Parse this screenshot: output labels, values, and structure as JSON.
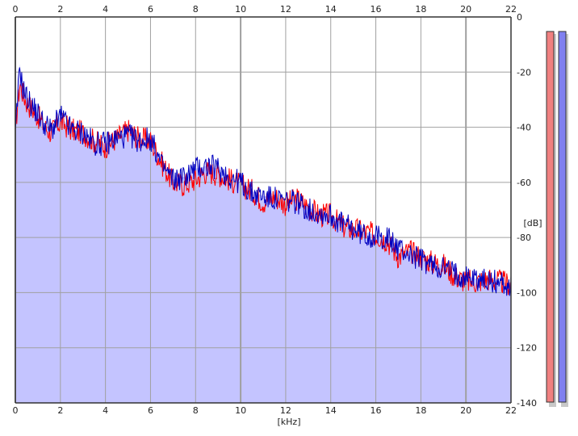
{
  "chart_data": {
    "type": "area",
    "xlabel": "[kHz]",
    "ylabel": "[dB]",
    "xlim": [
      0,
      22
    ],
    "ylim": [
      -140,
      0
    ],
    "x_ticks": [
      0,
      2,
      4,
      6,
      8,
      10,
      12,
      14,
      16,
      18,
      20,
      22
    ],
    "x_tick_labels": [
      "0",
      "2",
      "4",
      "6",
      "8",
      "10",
      "12",
      "14",
      "16",
      "18",
      "20",
      "22"
    ],
    "y_ticks": [
      0,
      -20,
      -40,
      -60,
      -80,
      -100,
      -120,
      -140
    ],
    "y_tick_labels": [
      "0",
      "-20",
      "-40",
      "-60",
      "-80",
      "-100",
      "-120",
      "-140"
    ],
    "grid": true,
    "x_axis_labels_on_top_and_bottom": true,
    "series": [
      {
        "color": "#ff0000",
        "x": [
          0,
          0.1,
          0.2,
          0.3,
          0.5,
          0.7,
          1,
          1.3,
          1.6,
          2,
          2.5,
          3,
          3.5,
          4,
          4.5,
          5,
          5.5,
          6,
          6.5,
          7,
          7.5,
          8,
          8.5,
          9,
          9.5,
          10,
          10.5,
          11,
          11.5,
          12,
          12.5,
          13,
          13.5,
          14,
          14.5,
          15,
          15.5,
          16,
          16.5,
          17,
          17.5,
          18,
          18.5,
          19,
          19.5,
          20,
          20.5,
          21,
          21.5,
          22
        ],
        "y": [
          -40,
          -32,
          -24,
          -27,
          -31,
          -33,
          -36,
          -40,
          -42,
          -38,
          -41,
          -42,
          -45,
          -47,
          -44,
          -41,
          -44,
          -45,
          -53,
          -60,
          -61,
          -59,
          -56,
          -57,
          -59,
          -61,
          -63,
          -67,
          -65,
          -68,
          -66,
          -69,
          -72,
          -72,
          -76,
          -77,
          -78,
          -79,
          -81,
          -87,
          -85,
          -87,
          -89,
          -90,
          -94,
          -96,
          -96,
          -95,
          -96,
          -97
        ]
      },
      {
        "color": "#0000c0",
        "x": [
          0,
          0.1,
          0.2,
          0.3,
          0.5,
          0.7,
          1,
          1.3,
          1.6,
          2,
          2.5,
          3,
          3.5,
          4,
          4.5,
          5,
          5.5,
          6,
          6.5,
          7,
          7.5,
          8,
          8.5,
          9,
          9.5,
          10,
          10.5,
          11,
          11.5,
          12,
          12.5,
          13,
          13.5,
          14,
          14.5,
          15,
          15.5,
          16,
          16.5,
          17,
          17.5,
          18,
          18.5,
          19,
          19.5,
          20,
          20.5,
          21,
          21.5,
          22
        ],
        "y": [
          -44,
          -30,
          -17,
          -25,
          -29,
          -32,
          -35,
          -39,
          -41,
          -36,
          -41,
          -42,
          -46,
          -46,
          -44,
          -43,
          -45,
          -44,
          -54,
          -59,
          -58,
          -55,
          -54,
          -55,
          -58,
          -60,
          -64,
          -65,
          -66,
          -67,
          -67,
          -70,
          -71,
          -72,
          -75,
          -77,
          -79,
          -80,
          -80,
          -84,
          -86,
          -88,
          -90,
          -91,
          -93,
          -94,
          -95,
          -96,
          -96,
          -98
        ]
      }
    ],
    "level_meters": [
      {
        "color": "#f08080",
        "level_db": 0
      },
      {
        "color": "#8080f0",
        "level_db": 0
      }
    ],
    "colors": {
      "fill": "#c4c4ff",
      "grid": "#a0a0a0",
      "axis": "#333333",
      "left_series": "#ff0000",
      "right_series": "#0000c0"
    }
  }
}
